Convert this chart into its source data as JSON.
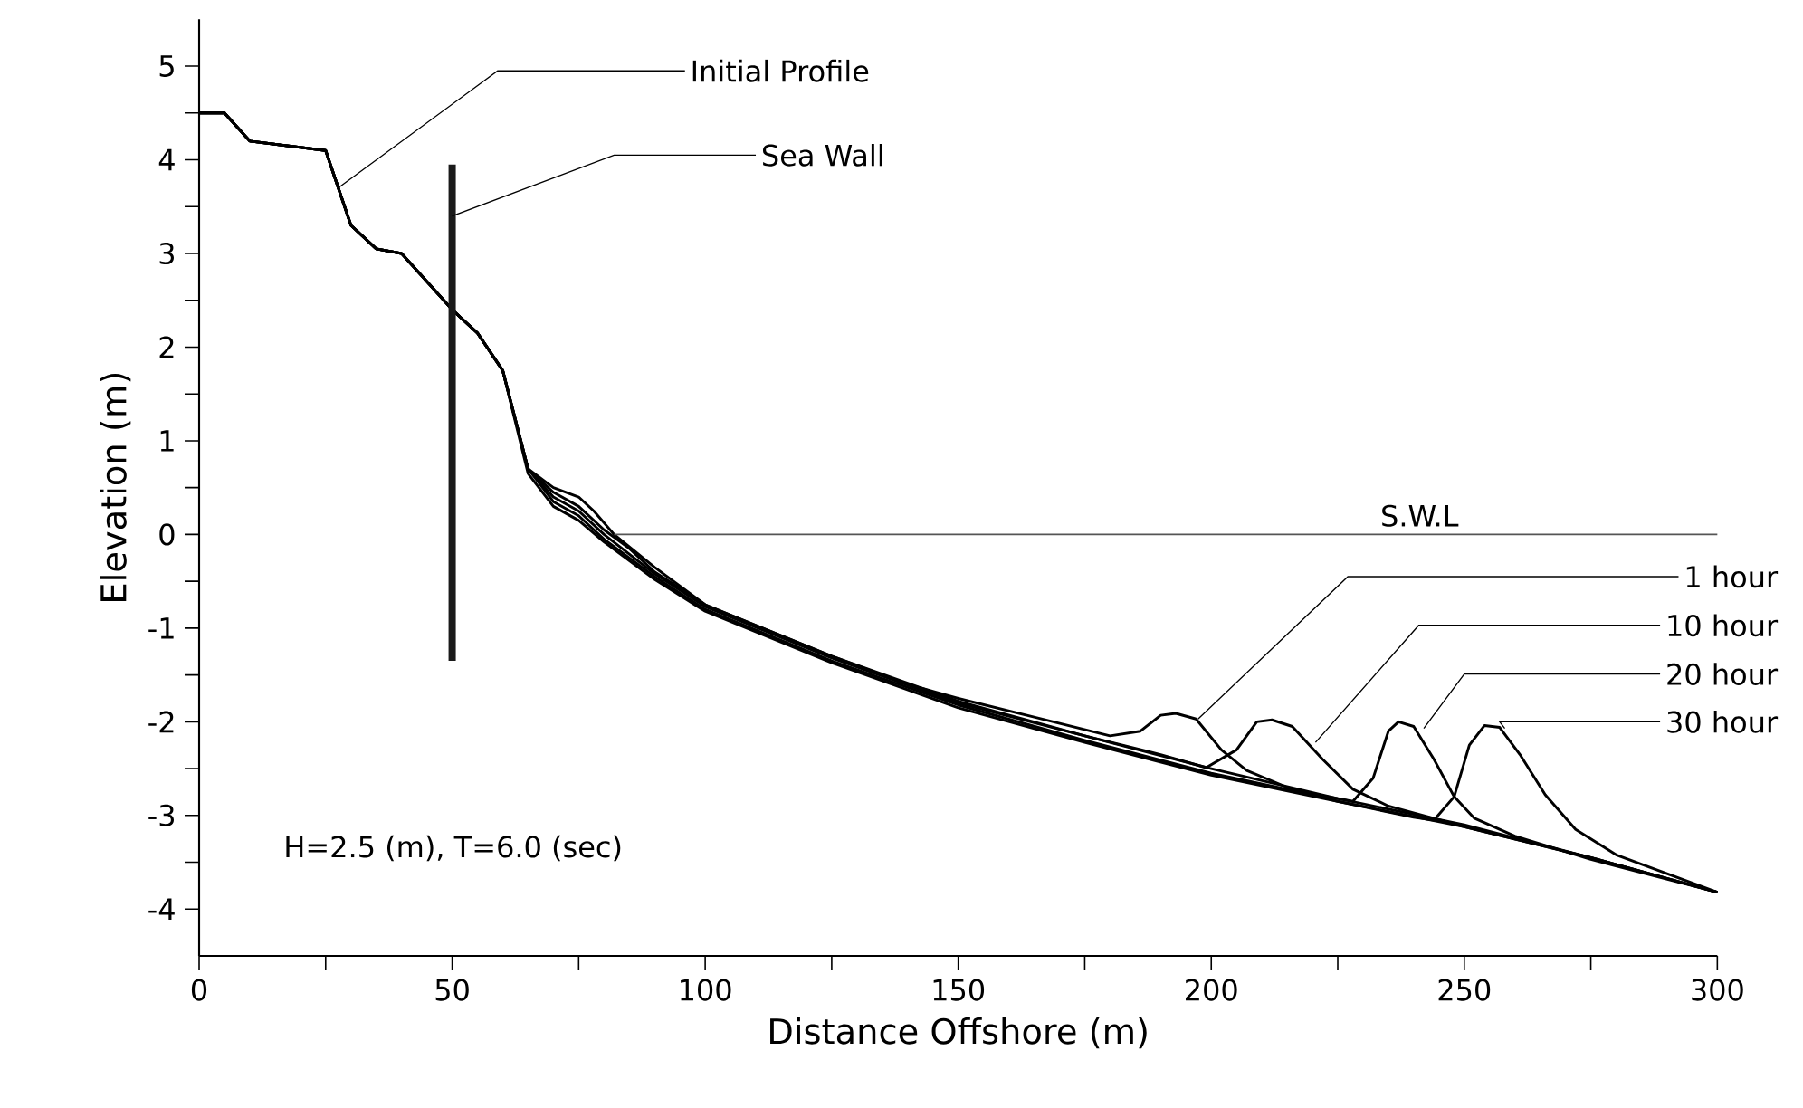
{
  "chart_data": {
    "type": "line",
    "xlabel": "Distance Offshore (m)",
    "ylabel": "Elevation (m)",
    "xlim": [
      0,
      300
    ],
    "ylim": [
      -4.5,
      5.5
    ],
    "xticks": [
      0,
      {
        "value": 25,
        "label": null
      },
      50,
      {
        "value": 75,
        "label": null
      },
      100,
      {
        "value": 125,
        "label": null
      },
      150,
      {
        "value": 175,
        "label": null
      },
      200,
      {
        "value": 225,
        "label": null
      },
      250,
      {
        "value": 275,
        "label": null
      },
      300
    ],
    "yticks": [
      -4,
      {
        "value": -3.5,
        "label": null
      },
      -3,
      {
        "value": -2.5,
        "label": null
      },
      -2,
      {
        "value": -1.5,
        "label": null
      },
      -1,
      {
        "value": -0.5,
        "label": null
      },
      0,
      {
        "value": 0.5,
        "label": null
      },
      1,
      {
        "value": 1.5,
        "label": null
      },
      2,
      {
        "value": 2.5,
        "label": null
      },
      3,
      {
        "value": 3.5,
        "label": null
      },
      4,
      {
        "value": 4.5,
        "label": null
      },
      5
    ],
    "series": [
      {
        "color": "#000000",
        "x": [
          0,
          5,
          10,
          25,
          30,
          35,
          40,
          45,
          50,
          55,
          60,
          65,
          70,
          75,
          78,
          82,
          90,
          100,
          110,
          125,
          150,
          175,
          200,
          225,
          250,
          275,
          300
        ],
        "values": [
          4.5,
          4.5,
          4.2,
          4.1,
          3.3,
          3.05,
          3.0,
          2.7,
          2.4,
          2.15,
          1.75,
          0.7,
          0.5,
          0.4,
          0.25,
          0.0,
          -0.35,
          -0.75,
          -0.97,
          -1.3,
          -1.78,
          -2.15,
          -2.5,
          -2.82,
          -3.1,
          -3.45,
          -3.82
        ]
      },
      {
        "color": "#000000",
        "x": [
          0,
          5,
          10,
          25,
          30,
          35,
          40,
          45,
          50,
          55,
          60,
          65,
          70,
          75,
          80,
          85,
          90,
          100,
          125,
          140,
          150,
          165,
          180,
          186,
          190,
          193,
          197,
          202,
          207,
          215,
          225,
          250,
          275,
          300
        ],
        "values": [
          4.5,
          4.5,
          4.2,
          4.1,
          3.3,
          3.05,
          3.0,
          2.7,
          2.4,
          2.15,
          1.75,
          0.7,
          0.45,
          0.3,
          0.05,
          -0.15,
          -0.4,
          -0.75,
          -1.3,
          -1.6,
          -1.75,
          -1.95,
          -2.15,
          -2.1,
          -1.93,
          -1.91,
          -1.97,
          -2.3,
          -2.52,
          -2.7,
          -2.85,
          -3.12,
          -3.45,
          -3.82
        ]
      },
      {
        "color": "#000000",
        "x": [
          0,
          5,
          10,
          25,
          30,
          35,
          40,
          45,
          50,
          55,
          60,
          65,
          70,
          75,
          80,
          90,
          100,
          125,
          150,
          175,
          190,
          199,
          205,
          209,
          212,
          216,
          222,
          228,
          235,
          250,
          275,
          300
        ],
        "values": [
          4.5,
          4.5,
          4.2,
          4.1,
          3.3,
          3.05,
          3.0,
          2.7,
          2.4,
          2.15,
          1.75,
          0.7,
          0.4,
          0.25,
          0.0,
          -0.42,
          -0.77,
          -1.32,
          -1.8,
          -2.15,
          -2.35,
          -2.49,
          -2.3,
          -2.0,
          -1.98,
          -2.05,
          -2.4,
          -2.72,
          -2.9,
          -3.12,
          -3.45,
          -3.82
        ]
      },
      {
        "color": "#000000",
        "x": [
          0,
          5,
          10,
          25,
          30,
          35,
          40,
          45,
          50,
          55,
          60,
          65,
          70,
          75,
          80,
          90,
          100,
          125,
          150,
          175,
          200,
          215,
          228,
          232,
          235,
          237,
          240,
          244,
          248,
          252,
          260,
          275,
          300
        ],
        "values": [
          4.5,
          4.5,
          4.2,
          4.1,
          3.3,
          3.05,
          3.0,
          2.7,
          2.4,
          2.15,
          1.75,
          0.7,
          0.35,
          0.2,
          -0.05,
          -0.45,
          -0.8,
          -1.35,
          -1.82,
          -2.2,
          -2.55,
          -2.72,
          -2.85,
          -2.6,
          -2.1,
          -2.0,
          -2.05,
          -2.4,
          -2.8,
          -3.03,
          -3.22,
          -3.47,
          -3.82
        ]
      },
      {
        "color": "#000000",
        "x": [
          0,
          5,
          10,
          25,
          30,
          35,
          40,
          45,
          50,
          55,
          60,
          65,
          70,
          75,
          80,
          90,
          100,
          125,
          150,
          175,
          200,
          225,
          240,
          244,
          248,
          251,
          254,
          257,
          261,
          266,
          272,
          280,
          290,
          300
        ],
        "values": [
          4.5,
          4.5,
          4.2,
          4.1,
          3.3,
          3.05,
          3.0,
          2.7,
          2.4,
          2.15,
          1.75,
          0.65,
          0.3,
          0.15,
          -0.08,
          -0.48,
          -0.82,
          -1.37,
          -1.85,
          -2.22,
          -2.57,
          -2.85,
          -3.02,
          -3.05,
          -2.8,
          -2.25,
          -2.04,
          -2.06,
          -2.35,
          -2.78,
          -3.15,
          -3.42,
          -3.62,
          -3.82
        ]
      },
      {
        "color": "#1a1a1a",
        "x": [
          50,
          50
        ],
        "values": [
          -1.35,
          3.95
        ]
      },
      {
        "name": "S.W.L",
        "color": "#555555",
        "x": [
          82,
          300
        ],
        "values": [
          0,
          0
        ]
      }
    ],
    "annotations": [
      {
        "text": "Initial Profile",
        "x": 27.5,
        "y": 3.7
      },
      {
        "text": "Sea Wall",
        "x": 50,
        "y": 3.4
      },
      {
        "text": "1  hour",
        "x": 197.4,
        "y": -1.97
      },
      {
        "text": "10  hour",
        "x": 220.6,
        "y": -2.22
      },
      {
        "text": "20  hour",
        "x": 242,
        "y": -2.07
      },
      {
        "text": "30  hour",
        "x": 258,
        "y": -2.07
      },
      "H=2.5 (m), T=6.0 (sec)"
    ]
  }
}
